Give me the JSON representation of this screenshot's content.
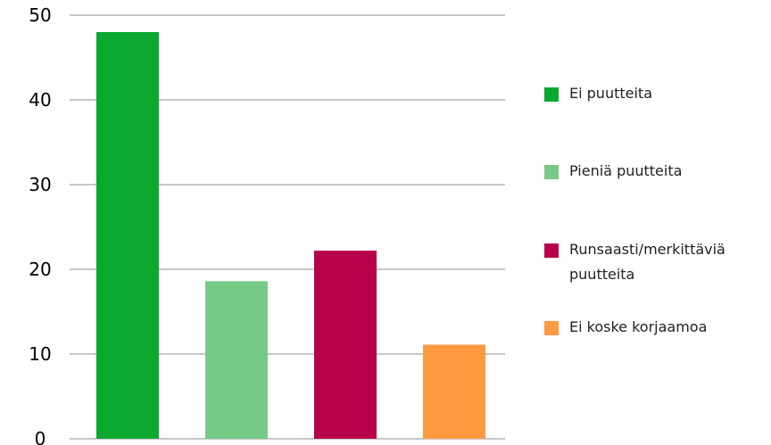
{
  "chart_data": {
    "type": "bar",
    "categories": [
      "Ei puutteita",
      "Pieniä puutteita",
      "Runsaasti/merkittäviä puutteita",
      "Ei koske korjaamoa"
    ],
    "values": [
      48,
      18.6,
      22.2,
      11.1
    ],
    "colors": [
      "#0aa82f",
      "#77c988",
      "#b8004b",
      "#ff9a40"
    ],
    "ylim": [
      0,
      50
    ],
    "yticks": [
      "0",
      "10",
      "20",
      "30",
      "40",
      "50"
    ],
    "grid": true,
    "legend_position": "right",
    "title": "",
    "xlabel": "",
    "ylabel": ""
  },
  "legend": {
    "items": [
      {
        "label": "Ei puutteita",
        "color": "#0aa82f"
      },
      {
        "label": "Pieniä puutteita",
        "color": "#77c988"
      },
      {
        "label": "Runsaasti/merkittäviä puutteita",
        "color": "#b8004b"
      },
      {
        "label": "Ei koske korjaamoa",
        "color": "#ff9a40"
      }
    ]
  }
}
